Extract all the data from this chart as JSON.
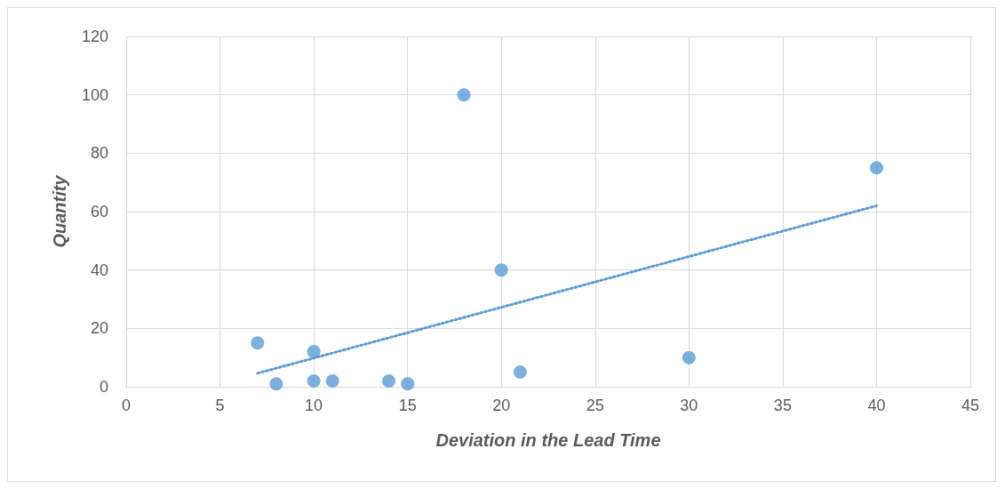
{
  "chart_data": {
    "type": "scatter",
    "xlabel": "Deviation in the Lead Time",
    "ylabel": "Quantity",
    "xlim": [
      0,
      45
    ],
    "xticks": [
      0,
      5,
      10,
      15,
      20,
      25,
      30,
      35,
      40,
      45
    ],
    "ylim": [
      0,
      120
    ],
    "yticks": [
      0,
      20,
      40,
      60,
      80,
      100,
      120
    ],
    "grid": true,
    "series": [
      {
        "color": "#5b9bd5",
        "marker": "circle",
        "x": [
          7,
          8,
          10,
          10,
          11,
          14,
          15,
          18,
          20,
          21,
          30,
          40
        ],
        "values": [
          15,
          1,
          12,
          2,
          2,
          2,
          1,
          100,
          40,
          5,
          10,
          75
        ]
      },
      {
        "type": "line",
        "color": "#5b9bd5",
        "marker": "none",
        "line_style": "dotted",
        "x": [
          7,
          40
        ],
        "values": [
          4.6,
          62
        ]
      }
    ]
  }
}
